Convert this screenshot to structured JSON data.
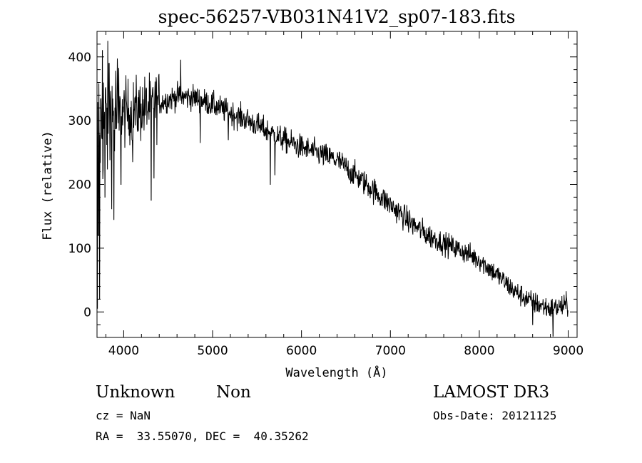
{
  "chart_data": {
    "type": "line",
    "title": "spec-56257-VB031N41V2_sp07-183.fits",
    "xlabel": "Wavelength (Å)",
    "ylabel": "Flux (relative)",
    "xlim": [
      3700,
      9100
    ],
    "ylim": [
      -40,
      440
    ],
    "xticks": [
      4000,
      5000,
      6000,
      7000,
      8000,
      9000
    ],
    "yticks": [
      0,
      100,
      200,
      300,
      400
    ],
    "grid": false,
    "continuum": [
      [
        3700,
        290
      ],
      [
        3800,
        300
      ],
      [
        4000,
        312
      ],
      [
        4200,
        318
      ],
      [
        4400,
        328
      ],
      [
        4600,
        338
      ],
      [
        4800,
        336
      ],
      [
        5000,
        325
      ],
      [
        5200,
        312
      ],
      [
        5400,
        300
      ],
      [
        5600,
        285
      ],
      [
        5800,
        270
      ],
      [
        6000,
        258
      ],
      [
        6200,
        248
      ],
      [
        6400,
        238
      ],
      [
        6600,
        215
      ],
      [
        6800,
        192
      ],
      [
        7000,
        168
      ],
      [
        7200,
        143
      ],
      [
        7400,
        122
      ],
      [
        7600,
        108
      ],
      [
        7800,
        96
      ],
      [
        8000,
        82
      ],
      [
        8200,
        58
      ],
      [
        8400,
        32
      ],
      [
        8600,
        15
      ],
      [
        8800,
        5
      ],
      [
        9000,
        10
      ]
    ],
    "features": [
      [
        3705,
        5
      ],
      [
        3715,
        120
      ],
      [
        3730,
        20
      ],
      [
        3760,
        410
      ],
      [
        3790,
        180
      ],
      [
        3835,
        390
      ],
      [
        3890,
        145
      ],
      [
        3970,
        200
      ],
      [
        4101,
        235
      ],
      [
        4310,
        175
      ],
      [
        4340,
        210
      ],
      [
        4640,
        395
      ],
      [
        4861,
        265
      ],
      [
        5176,
        270
      ],
      [
        5650,
        200
      ],
      [
        5700,
        215
      ],
      [
        6563,
        205
      ],
      [
        8600,
        -20
      ],
      [
        8830,
        -38
      ],
      [
        8980,
        22
      ]
    ]
  },
  "footer": {
    "object_class": "Unknown",
    "subclass": "Non",
    "cz": "cz = NaN",
    "coords": "RA =  33.55070, DEC =  40.35262",
    "survey": "LAMOST DR3",
    "obs_date": "Obs-Date: 20121125"
  }
}
